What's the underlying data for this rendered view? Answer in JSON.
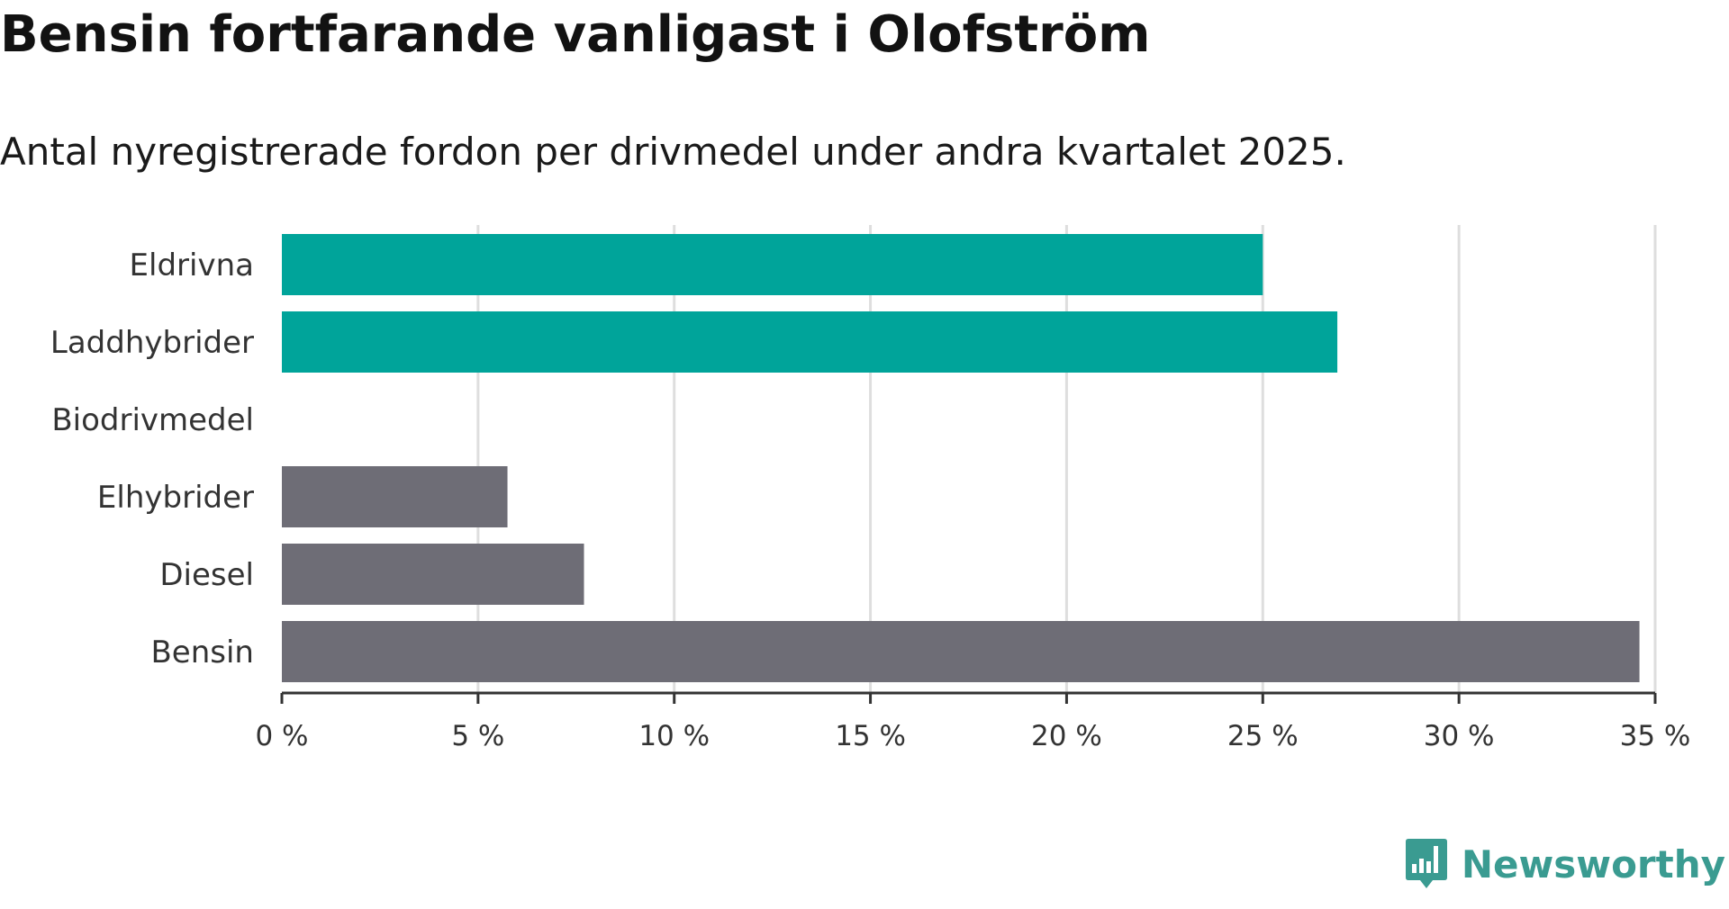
{
  "title": "Bensin fortfarande vanligast i Olofström",
  "subtitle": "Antal nyregistrerade fordon per drivmedel under andra kvartalet 2025.",
  "brand": {
    "name": "Newsworthy",
    "color": "#3a9b91",
    "icon": "bar-chart-speech-bubble-icon"
  },
  "colors": {
    "electric": "#00a49a",
    "fossil": "#6e6d76",
    "grid": "#dedede",
    "axis": "#333333"
  },
  "chart_data": {
    "type": "bar",
    "orientation": "horizontal",
    "categories": [
      "Eldrivna",
      "Laddhybrider",
      "Biodrivmedel",
      "Elhybrider",
      "Diesel",
      "Bensin"
    ],
    "values": [
      25.0,
      26.9,
      0.0,
      5.75,
      7.7,
      34.6
    ],
    "bar_groups": [
      "electric",
      "electric",
      "electric",
      "fossil",
      "fossil",
      "fossil"
    ],
    "x_ticks": [
      "0 %",
      "5 %",
      "10 %",
      "15 %",
      "20 %",
      "25 %",
      "30 %",
      "35 %"
    ],
    "xlim": [
      0,
      35
    ],
    "tick_step": 5,
    "unit": "%",
    "grid": true,
    "legend": "none",
    "xlabel": "",
    "ylabel": ""
  }
}
